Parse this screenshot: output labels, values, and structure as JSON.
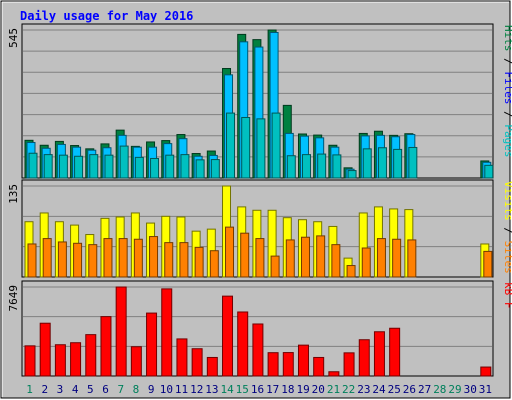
{
  "chart_data": [
    {
      "type": "bar",
      "title": "Daily usage for May 2016",
      "ymax_label": "545",
      "categories": [
        "1",
        "2",
        "3",
        "4",
        "5",
        "6",
        "7",
        "8",
        "9",
        "10",
        "11",
        "12",
        "13",
        "14",
        "15",
        "16",
        "17",
        "18",
        "19",
        "20",
        "21",
        "22",
        "23",
        "24",
        "25",
        "26",
        "27",
        "28",
        "29",
        "30",
        "31"
      ],
      "weekend_days": [
        "1",
        "7",
        "8",
        "14",
        "15",
        "21",
        "22",
        "28",
        "29"
      ],
      "series": [
        {
          "name": "Hits",
          "color": "#008040",
          "values": [
            137,
            119,
            133,
            118,
            106,
            124,
            174,
            115,
            131,
            136,
            158,
            89,
            98,
            398,
            522,
            503,
            538,
            264,
            160,
            156,
            119,
            37,
            162,
            170,
            155,
            161,
            0,
            0,
            0,
            0,
            62
          ]
        },
        {
          "name": "Files",
          "color": "#00c0ff",
          "values": [
            129,
            108,
            122,
            112,
            101,
            110,
            155,
            112,
            112,
            125,
            143,
            79,
            82,
            375,
            495,
            476,
            529,
            162,
            152,
            146,
            112,
            32,
            153,
            155,
            150,
            158,
            0,
            0,
            0,
            0,
            57
          ]
        },
        {
          "name": "Pages",
          "color": "#00c0c0",
          "values": [
            90,
            85,
            83,
            79,
            85,
            83,
            116,
            75,
            71,
            83,
            85,
            66,
            67,
            236,
            220,
            215,
            236,
            81,
            85,
            87,
            84,
            27,
            106,
            110,
            104,
            111,
            0,
            0,
            0,
            0,
            46
          ]
        }
      ],
      "ylabel": "Pages / Files / Hits",
      "ylabel_parts": [
        {
          "text": "Pages",
          "color": "#00c0c0"
        },
        {
          "text": " / ",
          "color": "#000000"
        },
        {
          "text": "Files",
          "color": "#0000ff"
        },
        {
          "text": " / ",
          "color": "#000000"
        },
        {
          "text": "Hits",
          "color": "#008040"
        }
      ]
    },
    {
      "type": "bar",
      "ymax_label": "135",
      "categories": [
        "1",
        "2",
        "3",
        "4",
        "5",
        "6",
        "7",
        "8",
        "9",
        "10",
        "11",
        "12",
        "13",
        "14",
        "15",
        "16",
        "17",
        "18",
        "19",
        "20",
        "21",
        "22",
        "23",
        "24",
        "25",
        "26",
        "27",
        "28",
        "29",
        "30",
        "31"
      ],
      "series": [
        {
          "name": "Visits",
          "color": "#ffff00",
          "values": [
            82,
            95,
            82,
            77,
            63,
            87,
            89,
            95,
            80,
            90,
            89,
            68,
            71,
            135,
            104,
            99,
            99,
            88,
            85,
            82,
            75,
            28,
            95,
            104,
            101,
            100,
            0,
            0,
            0,
            0,
            49
          ]
        },
        {
          "name": "Sites",
          "color": "#ff8000",
          "values": [
            49,
            57,
            52,
            50,
            48,
            57,
            57,
            56,
            60,
            51,
            51,
            44,
            39,
            74,
            65,
            57,
            31,
            55,
            59,
            61,
            48,
            17,
            43,
            57,
            56,
            55,
            0,
            0,
            0,
            0,
            38
          ]
        }
      ],
      "ylabel": "Sites / Visits",
      "ylabel_parts": [
        {
          "text": "Sites",
          "color": "#ff8000"
        },
        {
          "text": " / ",
          "color": "#000000"
        },
        {
          "text": "Visits",
          "color": "#ffff00"
        }
      ]
    },
    {
      "type": "bar",
      "ymax_label": "7649",
      "categories": [
        "1",
        "2",
        "3",
        "4",
        "5",
        "6",
        "7",
        "8",
        "9",
        "10",
        "11",
        "12",
        "13",
        "14",
        "15",
        "16",
        "17",
        "18",
        "19",
        "20",
        "21",
        "22",
        "23",
        "24",
        "25",
        "26",
        "27",
        "28",
        "29",
        "30",
        "31"
      ],
      "series": [
        {
          "name": "kB F",
          "color": "#ff0000",
          "values": [
            2593,
            4536,
            2688,
            2861,
            3556,
            5104,
            7649,
            2516,
            5408,
            7488,
            3188,
            2345,
            1593,
            6864,
            5502,
            4471,
            2004,
            2014,
            2653,
            1593,
            366,
            1991,
            3118,
            3803,
            4104,
            0,
            0,
            0,
            0,
            0,
            770
          ]
        }
      ],
      "ylabel": "kB F",
      "ylabel_parts": [
        {
          "text": "kB F",
          "color": "#ff0000"
        }
      ]
    }
  ],
  "colors": {
    "background": "#c0c0c0",
    "frame": "#ffffff",
    "title": "#0000ff",
    "weekday_label": "#000080",
    "weekend_label": "#00805c",
    "gridline": "#808080"
  }
}
